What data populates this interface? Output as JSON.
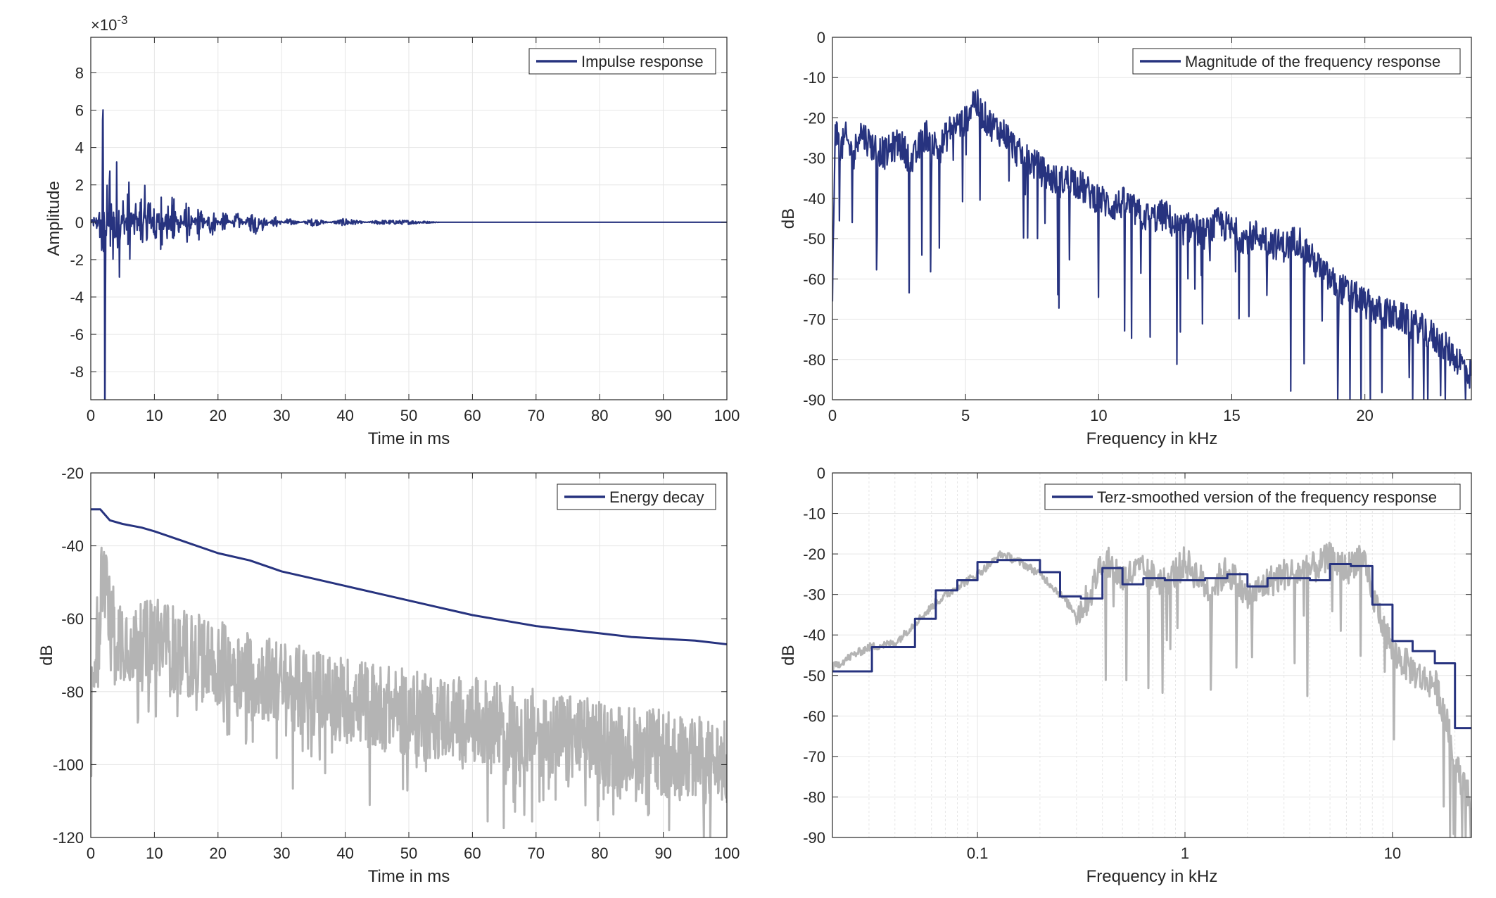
{
  "colors": {
    "series": "#27337f",
    "raw": "#b4b4b4",
    "grid": "#e6e6e6",
    "axis": "#262626"
  },
  "chart_data": [
    {
      "type": "line",
      "id": "impulse",
      "xlabel": "Time in ms",
      "ylabel": "Amplitude",
      "xlim": [
        0,
        100
      ],
      "ylim": [
        -0.0095,
        0.0099
      ],
      "xticks": [
        "0",
        "10",
        "20",
        "30",
        "40",
        "50",
        "60",
        "70",
        "80",
        "90",
        "100"
      ],
      "yticks": [
        "-8",
        "-6",
        "-4",
        "-2",
        "0",
        "2",
        "4",
        "6",
        "8"
      ],
      "exponent_label": "×10",
      "exponent_power": "-3",
      "grid": true,
      "legend": "top-right",
      "series": [
        {
          "name": "Impulse response",
          "color": "#27337f",
          "x": [
            0,
            0.5,
            1,
            1.5,
            2,
            2.1,
            2.2,
            2.4,
            2.6,
            3,
            3.5,
            4,
            4.5,
            5,
            6,
            7,
            8,
            8.5,
            9,
            10,
            11,
            12,
            13,
            14,
            15,
            17,
            19,
            21,
            23,
            25,
            26,
            27,
            29,
            31,
            35,
            40,
            45,
            50,
            55,
            60,
            70,
            80,
            90,
            100
          ],
          "y": [
            0.0,
            0.0003,
            -0.0006,
            0.0012,
            -0.0088,
            0.0044,
            -0.0075,
            0.0035,
            -0.0028,
            0.0039,
            -0.0022,
            0.0043,
            -0.0027,
            0.0018,
            -0.0024,
            0.0015,
            -0.0021,
            0.0018,
            -0.0029,
            0.0021,
            -0.0018,
            0.0014,
            -0.002,
            0.0011,
            -0.0012,
            0.0009,
            -0.0008,
            0.0006,
            -0.0005,
            0.0004,
            0.0007,
            -0.0004,
            0.0003,
            -0.0002,
            0.0002,
            -0.0002,
            0.0001,
            0.0001,
            0.0,
            0.0,
            0.0,
            0.0,
            0.0,
            0.0
          ]
        }
      ]
    },
    {
      "type": "line",
      "id": "magnitude",
      "xlabel": "Frequency in kHz",
      "ylabel": "dB",
      "xlim": [
        0,
        24
      ],
      "ylim": [
        -90,
        0
      ],
      "xticks": [
        "0",
        "5",
        "10",
        "15",
        "20"
      ],
      "yticks": [
        "0",
        "-10",
        "-20",
        "-30",
        "-40",
        "-50",
        "-60",
        "-70",
        "-80",
        "-90"
      ],
      "grid": true,
      "legend": "top-right",
      "series": [
        {
          "name": "Magnitude of the frequency response",
          "color": "#27337f",
          "x": [
            0,
            0.1,
            0.3,
            0.5,
            0.8,
            1,
            1.5,
            2,
            2.5,
            3,
            3.5,
            4,
            4.5,
            5,
            5.3,
            5.6,
            6,
            6.5,
            7,
            7.5,
            8,
            8.5,
            9,
            9.5,
            10,
            10.5,
            11,
            11.5,
            12,
            12.5,
            13,
            13.5,
            14,
            14.5,
            15,
            15.5,
            16,
            16.5,
            17,
            17.5,
            18,
            18.5,
            19,
            19.5,
            20,
            20.5,
            21,
            21.5,
            22,
            22.5,
            23,
            23.5,
            24
          ],
          "y": [
            -64,
            -22,
            -28,
            -25,
            -30,
            -23,
            -27,
            -29,
            -26,
            -31,
            -24,
            -28,
            -22,
            -21,
            -15,
            -19,
            -22,
            -24,
            -29,
            -31,
            -34,
            -36,
            -35,
            -38,
            -40,
            -42,
            -41,
            -44,
            -45,
            -44,
            -48,
            -47,
            -49,
            -46,
            -48,
            -50,
            -49,
            -51,
            -52,
            -50,
            -55,
            -59,
            -62,
            -64,
            -66,
            -68,
            -69,
            -70,
            -72,
            -74,
            -77,
            -80,
            -84
          ]
        }
      ]
    },
    {
      "type": "line",
      "id": "decay",
      "xlabel": "Time in ms",
      "ylabel": "dB",
      "xlim": [
        0,
        100
      ],
      "ylim": [
        -120,
        -20
      ],
      "xticks": [
        "0",
        "10",
        "20",
        "30",
        "40",
        "50",
        "60",
        "70",
        "80",
        "90",
        "100"
      ],
      "yticks": [
        "-20",
        "-40",
        "-60",
        "-80",
        "-100",
        "-120"
      ],
      "grid": true,
      "legend": "top-right",
      "series": [
        {
          "name": "Energy decay",
          "color": "#27337f",
          "x": [
            0,
            1.5,
            2,
            3,
            5,
            8,
            10,
            15,
            20,
            25,
            30,
            35,
            40,
            45,
            50,
            55,
            60,
            65,
            70,
            75,
            80,
            85,
            90,
            95,
            100
          ],
          "y": [
            -30,
            -30,
            -31,
            -33,
            -34,
            -35,
            -36,
            -39,
            -42,
            -44,
            -47,
            -49,
            -51,
            -53,
            -55,
            -57,
            -59,
            -60.5,
            -62,
            -63,
            -64,
            -65,
            -65.5,
            -66,
            -67
          ]
        },
        {
          "name": "",
          "color": "#b4b4b4",
          "x": [
            0,
            2,
            3,
            5,
            8,
            10,
            15,
            20,
            25,
            30,
            40,
            50,
            60,
            70,
            80,
            90,
            100
          ],
          "y": [
            -85,
            -45,
            -60,
            -65,
            -68,
            -65,
            -70,
            -72,
            -75,
            -78,
            -82,
            -86,
            -88,
            -91,
            -94,
            -97,
            -100
          ]
        }
      ]
    },
    {
      "type": "line",
      "id": "terz",
      "xlabel": "Frequency in kHz",
      "ylabel": "dB",
      "xscale": "log",
      "xlim": [
        0.02,
        24
      ],
      "ylim": [
        -90,
        0
      ],
      "xticks": [
        "0.1",
        "1",
        "10"
      ],
      "yticks": [
        "0",
        "-10",
        "-20",
        "-30",
        "-40",
        "-50",
        "-60",
        "-70",
        "-80",
        "-90"
      ],
      "grid": true,
      "legend": "top-right",
      "series": [
        {
          "name": "Terz-smoothed version of the frequency response",
          "color": "#27337f",
          "x": [
            0.02,
            0.031,
            0.05,
            0.063,
            0.08,
            0.1,
            0.125,
            0.16,
            0.2,
            0.25,
            0.315,
            0.4,
            0.5,
            0.63,
            0.8,
            1,
            1.25,
            1.6,
            2,
            2.5,
            3.15,
            4,
            5,
            6.3,
            8,
            10,
            12.5,
            16,
            20,
            24
          ],
          "y": [
            -49,
            -43,
            -36,
            -29,
            -26.5,
            -22,
            -21.5,
            -21.5,
            -24.5,
            -30.5,
            -31,
            -23.5,
            -27.5,
            -26,
            -26.5,
            -26.5,
            -26,
            -25,
            -28,
            -26,
            -26,
            -26.5,
            -22.5,
            -23,
            -32.5,
            -41.5,
            -44,
            -47,
            -63,
            -63
          ]
        },
        {
          "name": "",
          "color": "#b4b4b4",
          "x": [
            0.02,
            0.025,
            0.03,
            0.04,
            0.05,
            0.063,
            0.08,
            0.1,
            0.13,
            0.16,
            0.2,
            0.25,
            0.3,
            0.35,
            0.4,
            0.5,
            0.6,
            0.8,
            1,
            1.3,
            1.6,
            2,
            2.5,
            3,
            4,
            5,
            6,
            7,
            8,
            10,
            12,
            14,
            16,
            18,
            20,
            24
          ],
          "y": [
            -48,
            -45,
            -43,
            -42,
            -37,
            -32,
            -28,
            -25,
            -20,
            -22,
            -25,
            -30,
            -35,
            -30,
            -21,
            -26,
            -24,
            -27,
            -22,
            -29,
            -24,
            -31,
            -27,
            -25,
            -24,
            -21,
            -24,
            -20,
            -30,
            -44,
            -48,
            -51,
            -52,
            -60,
            -72,
            -82
          ]
        }
      ]
    }
  ]
}
